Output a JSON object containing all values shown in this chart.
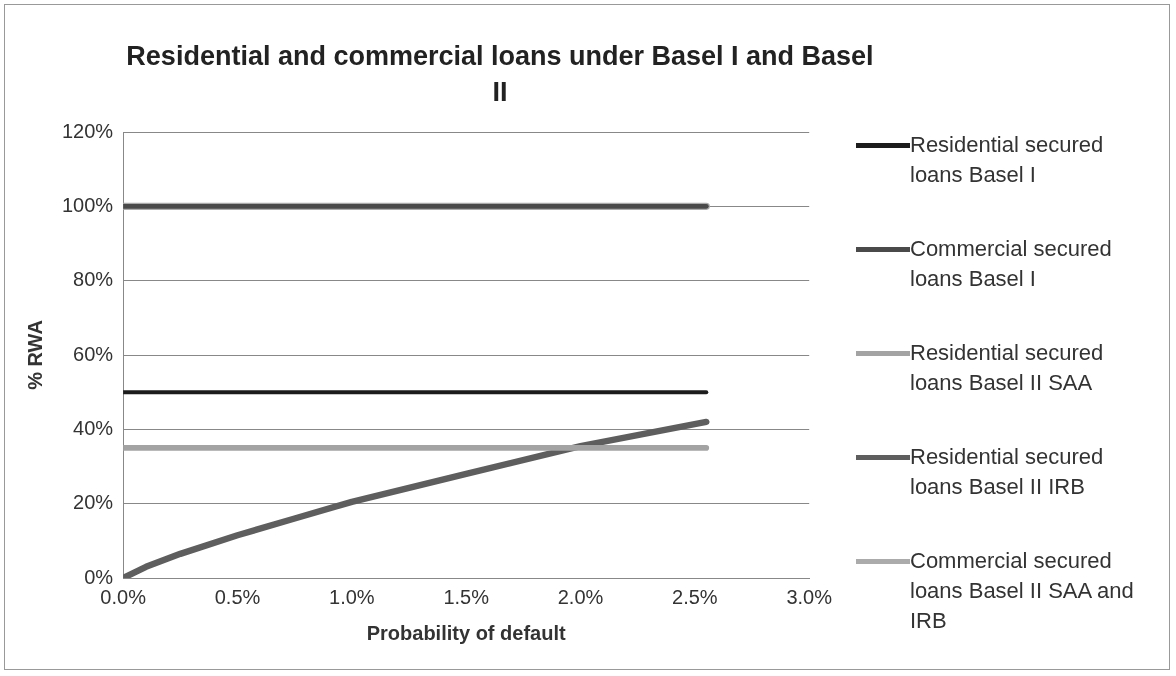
{
  "chart_data": {
    "type": "line",
    "title": "Residential and commercial loans under Basel I and Basel II",
    "xlabel": "Probability of default",
    "ylabel": "% RWA",
    "x": [
      0,
      2.55
    ],
    "series": [
      {
        "name": "Residential secured loans Basel I",
        "color": "#1c1c1c",
        "values": [
          50,
          50
        ]
      },
      {
        "name": "Commercial secured loans Basel I",
        "color": "#4a4a4a",
        "values": [
          100,
          100
        ]
      },
      {
        "name": "Residential secured loans Basel II SAA",
        "color": "#a3a3a3",
        "values": [
          35,
          35
        ]
      },
      {
        "name": "Residential secured loans Basel II IRB",
        "color": "#5e5e5e",
        "x": [
          0,
          0.1,
          0.25,
          0.5,
          0.75,
          1.0,
          1.5,
          2.0,
          2.55
        ],
        "values": [
          0,
          3,
          6.5,
          11.5,
          16,
          20.5,
          28,
          35.5,
          42
        ]
      },
      {
        "name": "Commercial secured loans Basel II SAA and IRB",
        "color": "#ababab",
        "values": [
          100,
          100
        ]
      }
    ],
    "xlim": [
      0,
      3
    ],
    "xticks": [
      {
        "value": 0,
        "label": "0.0%"
      },
      {
        "value": 0.5,
        "label": "0.5%"
      },
      {
        "value": 1,
        "label": "1.0%"
      },
      {
        "value": 1.5,
        "label": "1.5%"
      },
      {
        "value": 2,
        "label": "2.0%"
      },
      {
        "value": 2.5,
        "label": "2.5%"
      },
      {
        "value": 3,
        "label": "3.0%"
      }
    ],
    "ylim": [
      0,
      120
    ],
    "yticks": [
      {
        "value": 0,
        "label": "0%"
      },
      {
        "value": 20,
        "label": "20%"
      },
      {
        "value": 40,
        "label": "40%"
      },
      {
        "value": 60,
        "label": "60%"
      },
      {
        "value": 80,
        "label": "80%"
      },
      {
        "value": 100,
        "label": "100%"
      },
      {
        "value": 120,
        "label": "120%"
      }
    ],
    "grid": "y",
    "legend": "right",
    "marker": "none",
    "line_style": "solid"
  }
}
